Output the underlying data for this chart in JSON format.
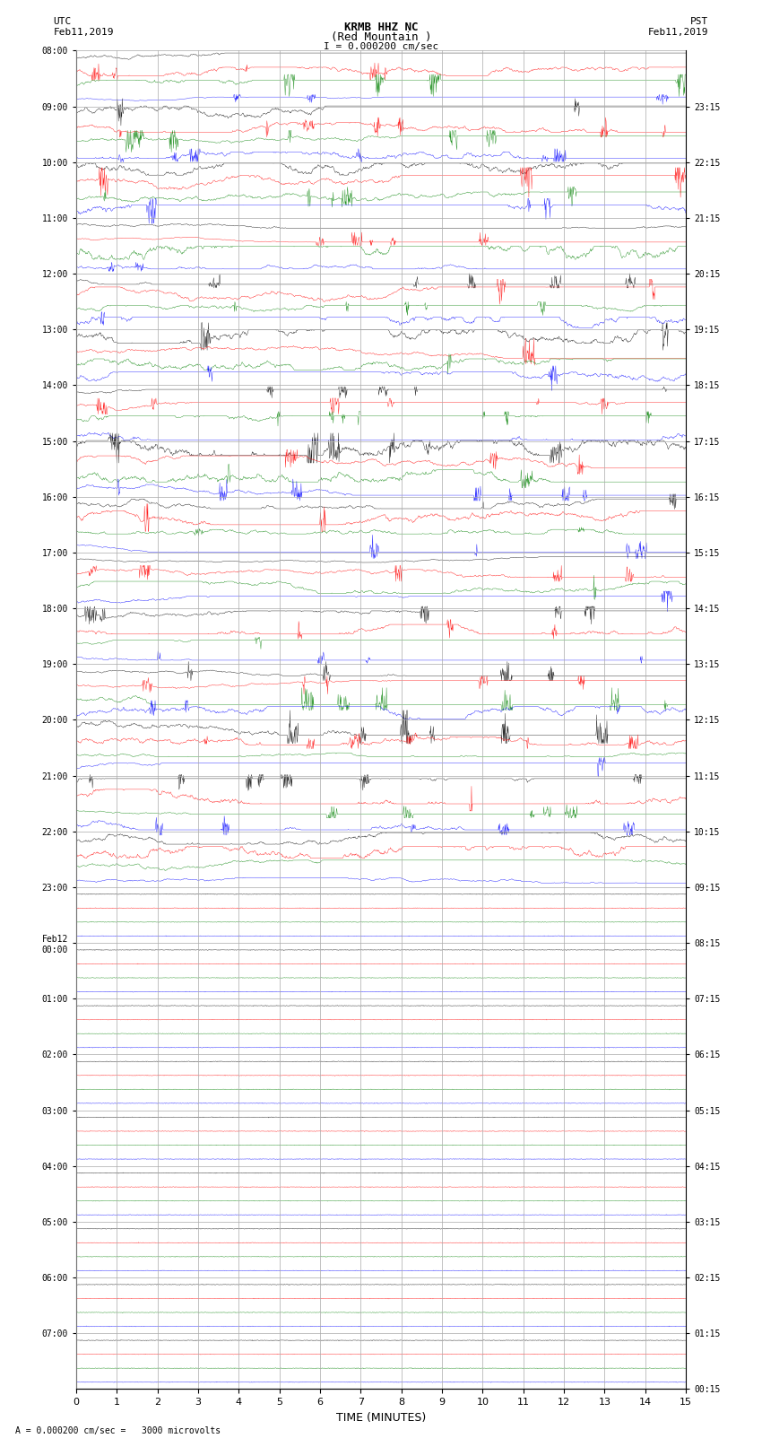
{
  "title_line1": "KRMB HHZ NC",
  "title_line2": "(Red Mountain )",
  "scale_text": "I = 0.000200 cm/sec",
  "left_label": "UTC",
  "left_date": "Feb11,2019",
  "right_label": "PST",
  "right_date": "Feb11,2019",
  "xlabel": "TIME (MINUTES)",
  "bottom_note": "= 0.000200 cm/sec =   3000 microvolts",
  "xlim": [
    0,
    15
  ],
  "xticks": [
    0,
    1,
    2,
    3,
    4,
    5,
    6,
    7,
    8,
    9,
    10,
    11,
    12,
    13,
    14,
    15
  ],
  "left_times": [
    "08:00",
    "09:00",
    "10:00",
    "11:00",
    "12:00",
    "13:00",
    "14:00",
    "15:00",
    "16:00",
    "17:00",
    "18:00",
    "19:00",
    "20:00",
    "21:00",
    "22:00",
    "23:00",
    "Feb12\n00:00",
    "01:00",
    "02:00",
    "03:00",
    "04:00",
    "05:00",
    "06:00",
    "07:00"
  ],
  "right_times": [
    "00:15",
    "01:15",
    "02:15",
    "03:15",
    "04:15",
    "05:15",
    "06:15",
    "07:15",
    "08:15",
    "09:15",
    "10:15",
    "11:15",
    "12:15",
    "13:15",
    "14:15",
    "15:15",
    "16:15",
    "17:15",
    "18:15",
    "19:15",
    "20:15",
    "21:15",
    "22:15",
    "23:15"
  ],
  "n_rows": 24,
  "active_rows": 15,
  "traces_per_row": 4,
  "trace_colors": [
    "black",
    "red",
    "green",
    "blue"
  ],
  "bg_color": "#ffffff",
  "grid_color": "#aaaaaa",
  "signal_amplitude": 0.35,
  "noise_amplitude_active": 0.28
}
